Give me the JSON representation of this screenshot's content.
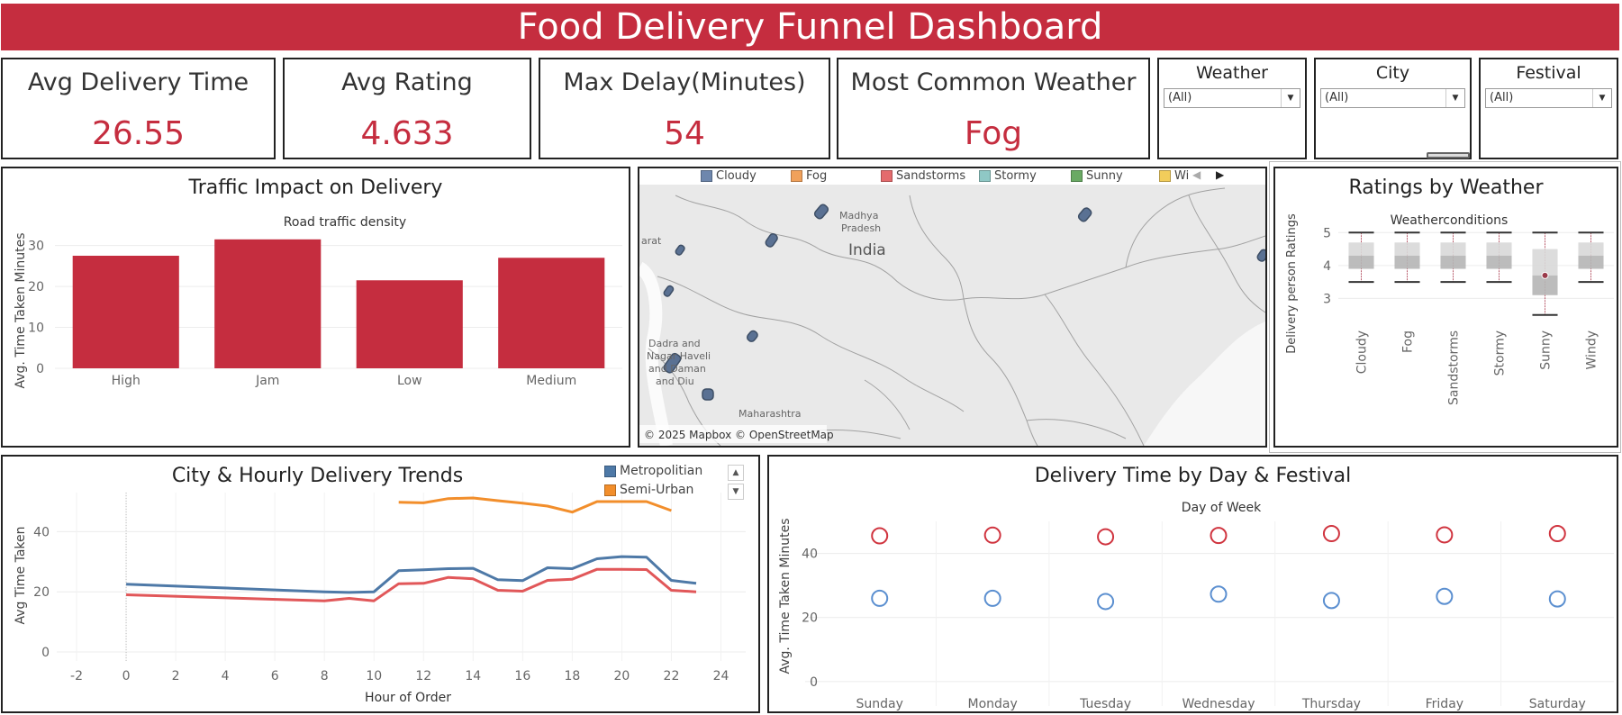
{
  "title": "Food Delivery Funnel Dashboard",
  "kpis": [
    {
      "label": "Avg Delivery Time",
      "value": "26.55"
    },
    {
      "label": "Avg Rating",
      "value": "4.633"
    },
    {
      "label": "Max Delay(Minutes)",
      "value": "54"
    },
    {
      "label": "Most Common Weather",
      "value": "Fog"
    }
  ],
  "filters": [
    {
      "label": "Weather",
      "value": "(All)"
    },
    {
      "label": "City",
      "value": "(All)"
    },
    {
      "label": "Festival",
      "value": "(All)"
    }
  ],
  "colors": {
    "accent": "#c52d3f",
    "metro": "#4e79a7",
    "semi": "#f28e2b",
    "urban": "#e15759",
    "circle_red": "#d0343f",
    "circle_blue": "#5b8fd0"
  },
  "map": {
    "legend": [
      {
        "label": "Cloudy",
        "color": "#6e87ad"
      },
      {
        "label": "Fog",
        "color": "#f0a15b"
      },
      {
        "label": "Sandstorms",
        "color": "#e46b6d"
      },
      {
        "label": "Stormy",
        "color": "#8fc8c5"
      },
      {
        "label": "Sunny",
        "color": "#6aaa64"
      },
      {
        "label": "Wi",
        "color": "#f2cd5b"
      }
    ],
    "labels": [
      "Madhya",
      "Pradesh",
      "India",
      "arat",
      "Dadra and",
      "Nagar Haveli",
      "and Daman",
      "and Diu",
      "Maharashtra"
    ],
    "attribution": "© 2025 Mapbox © OpenStreetMap"
  },
  "chart_data": [
    {
      "type": "bar",
      "title": "Traffic Impact on Delivery",
      "subtitle": "Road traffic density",
      "ylabel": "Avg. Time Taken Minutes",
      "categories": [
        "High",
        "Jam",
        "Low",
        "Medium"
      ],
      "values": [
        27.5,
        31.5,
        21.5,
        27
      ],
      "yticks": [
        0,
        10,
        20,
        30
      ],
      "ylim": [
        0,
        33
      ]
    },
    {
      "type": "boxplot",
      "title": "Ratings by Weather",
      "subtitle": "Weatherconditions",
      "ylabel": "Delivery person Ratings",
      "categories": [
        "Cloudy",
        "Fog",
        "Sandstorms",
        "Stormy",
        "Sunny",
        "Windy"
      ],
      "boxes": [
        {
          "min": 3.5,
          "q1": 3.9,
          "median": 4.3,
          "q3": 4.7,
          "max": 5
        },
        {
          "min": 3.5,
          "q1": 3.9,
          "median": 4.3,
          "q3": 4.7,
          "max": 5
        },
        {
          "min": 3.5,
          "q1": 3.9,
          "median": 4.3,
          "q3": 4.7,
          "max": 5
        },
        {
          "min": 3.5,
          "q1": 3.9,
          "median": 4.3,
          "q3": 4.7,
          "max": 5
        },
        {
          "min": 2.5,
          "q1": 3.1,
          "median": 3.7,
          "q3": 4.5,
          "max": 5,
          "mark": 3.7
        },
        {
          "min": 3.5,
          "q1": 3.9,
          "median": 4.3,
          "q3": 4.7,
          "max": 5
        }
      ],
      "yticks": [
        3,
        4,
        5
      ],
      "ylim": [
        2.3,
        5.2
      ]
    },
    {
      "type": "line",
      "title": "City & Hourly Delivery Trends",
      "xlabel": "Hour of Order",
      "ylabel": "Avg Time Taken",
      "xticks": [
        -2,
        0,
        2,
        4,
        6,
        8,
        10,
        12,
        14,
        16,
        18,
        20,
        22,
        24
      ],
      "yticks": [
        0,
        20,
        40
      ],
      "xlim": [
        -2.8,
        25
      ],
      "ylim": [
        -3,
        53
      ],
      "series": [
        {
          "name": "Metropolitian",
          "color": "#4e79a7",
          "x": [
            0,
            8,
            9,
            10,
            11,
            12,
            13,
            14,
            15,
            16,
            17,
            18,
            19,
            20,
            21,
            22,
            23
          ],
          "y": [
            22.5,
            20,
            19.8,
            20,
            27,
            27.3,
            27.7,
            27.8,
            24,
            23.7,
            28,
            27.7,
            31,
            31.7,
            31.5,
            23.8,
            22.8
          ]
        },
        {
          "name": "Semi-Urban",
          "color": "#f28e2b",
          "x": [
            11,
            12,
            13,
            14,
            15,
            16,
            17,
            18,
            19,
            20,
            21,
            22
          ],
          "y": [
            49.8,
            49.6,
            51,
            51.2,
            50.3,
            49.5,
            48.5,
            46.5,
            50,
            50,
            50,
            47
          ]
        },
        {
          "color": "#e15759",
          "x": [
            0,
            8,
            9,
            10,
            11,
            12,
            13,
            14,
            15,
            16,
            17,
            18,
            19,
            20,
            21,
            22,
            23
          ],
          "y": [
            19,
            17,
            17.8,
            17,
            22.7,
            22.8,
            24.8,
            24.3,
            20.5,
            20.2,
            23.8,
            24.2,
            27.5,
            27.5,
            27.4,
            20.5,
            20
          ]
        }
      ]
    },
    {
      "type": "scatter",
      "title": "Delivery Time by Day & Festival",
      "subtitle": "Day of Week",
      "ylabel": "Avg. Time Taken Minutes",
      "categories": [
        "Sunday",
        "Monday",
        "Tuesday",
        "Wednesday",
        "Thursday",
        "Friday",
        "Saturday"
      ],
      "series": [
        {
          "color": "#d0343f",
          "values": [
            45.5,
            45.7,
            45.2,
            45.6,
            46.2,
            45.8,
            46.2
          ]
        },
        {
          "color": "#5b8fd0",
          "values": [
            26,
            26,
            25,
            27.3,
            25.3,
            26.6,
            25.8
          ]
        }
      ],
      "yticks": [
        0,
        20,
        40
      ],
      "ylim": [
        -2,
        50
      ]
    }
  ]
}
